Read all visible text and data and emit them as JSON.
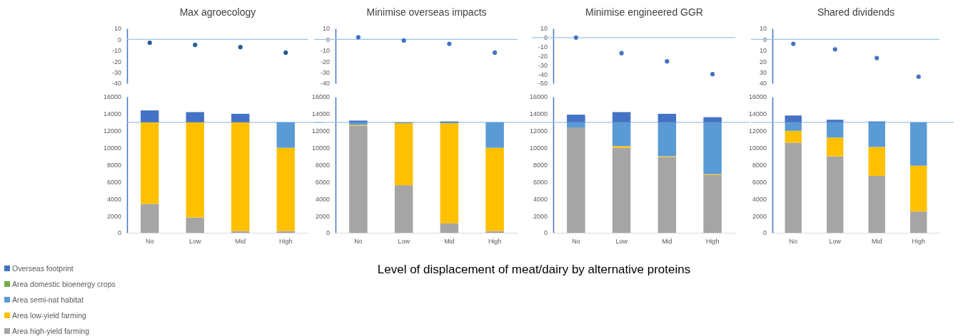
{
  "chart_data": [
    {
      "type": "scatter",
      "title": "Max agroecology",
      "categories": [
        null,
        null,
        null,
        null
      ],
      "values": [
        -3,
        -5,
        -7,
        -12
      ],
      "color": "#255e91",
      "ylim": [
        -40,
        10
      ],
      "yticks": [
        10,
        0,
        -10,
        -20,
        -30,
        -40
      ],
      "tick_labels": "y",
      "marker": "circle",
      "ref_lines": [
        {
          "axis": "y",
          "value": 0
        }
      ]
    },
    {
      "type": "scatter",
      "title": "Minimise overseas impacts",
      "categories": [
        null,
        null,
        null,
        null
      ],
      "values": [
        2,
        -1,
        -4,
        -12
      ],
      "color": "#4472c4",
      "ylim": [
        -40,
        10
      ],
      "yticks": [
        10,
        0,
        -10,
        -20,
        -30,
        -40
      ],
      "tick_labels": "y",
      "marker": "circle",
      "ref_lines": [
        {
          "axis": "y",
          "value": 0
        }
      ]
    },
    {
      "type": "scatter",
      "title": "Minimise engineered GGR",
      "categories": [
        null,
        null,
        null,
        null
      ],
      "values": [
        0,
        -17,
        -26,
        -40
      ],
      "color": "#4472c4",
      "ylim": [
        -50,
        10
      ],
      "yticks": [
        10,
        0,
        -10,
        -20,
        -30,
        -40,
        -50
      ],
      "tick_labels": "y",
      "marker": "circle",
      "ref_lines": [
        {
          "axis": "y",
          "value": 0
        }
      ]
    },
    {
      "type": "scatter",
      "title": "Shared dividends",
      "categories": [
        null,
        null,
        null,
        null
      ],
      "values": [
        -4,
        -9,
        -17,
        -34
      ],
      "color": "#4472c4",
      "ylim": [
        -40,
        10
      ],
      "yticks": [
        10,
        0,
        {
          "value": -10,
          "label": "10"
        },
        {
          "value": -20,
          "label": "20"
        },
        {
          "value": -30,
          "label": "30"
        },
        {
          "value": -40,
          "label": "40"
        }
      ],
      "tick_labels": "y",
      "marker": "circle",
      "ref_lines": [
        {
          "axis": "y",
          "value": 0
        }
      ]
    },
    {
      "type": "bar",
      "stacked": true,
      "categories": [
        "No",
        "Low",
        "Mid",
        "High"
      ],
      "ylim": [
        0,
        16000
      ],
      "yticks": [
        0,
        2000,
        4000,
        6000,
        8000,
        10000,
        12000,
        14000,
        16000
      ],
      "legend": "bottom left",
      "ref_lines": [
        {
          "axis": "y",
          "value": 13000
        }
      ],
      "series": [
        {
          "name": "Area high-yield farming",
          "color": "#a5a5a5",
          "values": [
            3400,
            1800,
            200,
            200
          ]
        },
        {
          "name": "Area low-yield farming",
          "color": "#ffc000",
          "values": [
            9600,
            11200,
            12800,
            9800
          ]
        },
        {
          "name": "Area semi-nat habitat",
          "color": "#5b9bd5",
          "values": [
            0,
            0,
            0,
            3000
          ]
        },
        {
          "name": "Area domestic bioenergy crops",
          "color": "#70ad47",
          "values": [
            0,
            0,
            0,
            0
          ]
        },
        {
          "name": "Overseas footprint",
          "color": "#4472c4",
          "values": [
            1400,
            1200,
            1000,
            0
          ]
        }
      ]
    },
    {
      "type": "bar",
      "stacked": true,
      "categories": [
        "No",
        "Low",
        "Mid",
        "High"
      ],
      "ylim": [
        0,
        16000
      ],
      "yticks": [
        0,
        2000,
        4000,
        6000,
        8000,
        10000,
        12000,
        14000,
        16000
      ],
      "xlabel": "Level of displacement of meat/dairy by alternative proteins",
      "ref_lines": [
        {
          "axis": "y",
          "value": 13000
        }
      ],
      "series": [
        {
          "color": "#a5a5a5",
          "values": [
            12600,
            5600,
            1100,
            200
          ]
        },
        {
          "color": "#ffc000",
          "values": [
            100,
            7300,
            11800,
            9800
          ]
        },
        {
          "color": "#5b9bd5",
          "values": [
            300,
            100,
            100,
            3000
          ]
        },
        {
          "color": "#70ad47",
          "values": [
            0,
            0,
            0,
            0
          ]
        },
        {
          "color": "#4472c4",
          "values": [
            200,
            0,
            100,
            0
          ]
        }
      ]
    },
    {
      "type": "bar",
      "stacked": true,
      "categories": [
        "No",
        "Low",
        "Mid",
        "High"
      ],
      "ylim": [
        0,
        16000
      ],
      "yticks": [
        0,
        2000,
        4000,
        6000,
        8000,
        10000,
        12000,
        14000,
        16000
      ],
      "ref_lines": [
        {
          "axis": "y",
          "value": 13000
        }
      ],
      "series": [
        {
          "color": "#a5a5a5",
          "values": [
            12400,
            10000,
            8900,
            6800
          ]
        },
        {
          "color": "#ffc000",
          "values": [
            0,
            200,
            100,
            100
          ]
        },
        {
          "color": "#5b9bd5",
          "values": [
            600,
            2800,
            4000,
            6100
          ]
        },
        {
          "color": "#70ad47",
          "values": [
            0,
            0,
            0,
            0
          ]
        },
        {
          "color": "#4472c4",
          "values": [
            900,
            1200,
            1000,
            600
          ]
        }
      ]
    },
    {
      "type": "bar",
      "stacked": true,
      "categories": [
        "No",
        "Low",
        "Mid",
        "High"
      ],
      "ylim": [
        0,
        16000
      ],
      "yticks": [
        0,
        2000,
        4000,
        6000,
        8000,
        10000,
        12000,
        14000,
        16000
      ],
      "ref_lines": [
        {
          "axis": "y",
          "value": 13000
        }
      ],
      "series": [
        {
          "color": "#a5a5a5",
          "values": [
            10600,
            9000,
            6700,
            2500
          ]
        },
        {
          "color": "#ffc000",
          "values": [
            1400,
            2200,
            3400,
            5400
          ]
        },
        {
          "color": "#5b9bd5",
          "values": [
            1000,
            1800,
            2900,
            5100
          ]
        },
        {
          "color": "#70ad47",
          "values": [
            0,
            0,
            0,
            0
          ]
        },
        {
          "color": "#4472c4",
          "values": [
            800,
            300,
            100,
            0
          ]
        }
      ]
    }
  ]
}
